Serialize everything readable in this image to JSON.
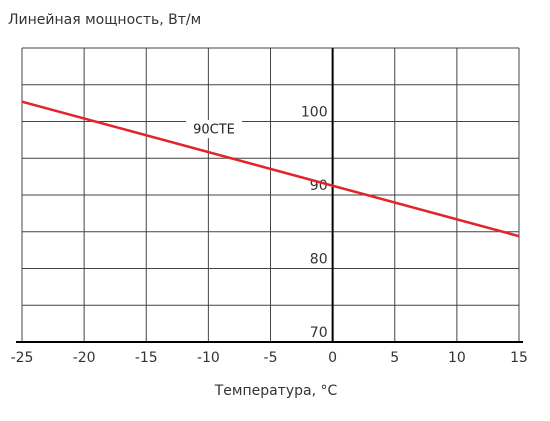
{
  "chart_data": {
    "type": "line",
    "ylabel": "Линейная мощность, Вт/м",
    "xlabel": "Температура, °С",
    "annotation": "90СТЕ",
    "x": [
      -25,
      15
    ],
    "series": [
      {
        "name": "90СТЕ",
        "color": "#e2242b",
        "values": [
          102.7,
          84.4
        ]
      }
    ],
    "xlim": [
      -25,
      15
    ],
    "xticks": [
      -25,
      -20,
      -15,
      -10,
      -5,
      0,
      5,
      10,
      15
    ],
    "ylim": [
      70,
      110
    ],
    "yticks": [
      70,
      80,
      90,
      100
    ],
    "minor_yticks": [
      75,
      85,
      95,
      105,
      110
    ],
    "grid": true
  }
}
